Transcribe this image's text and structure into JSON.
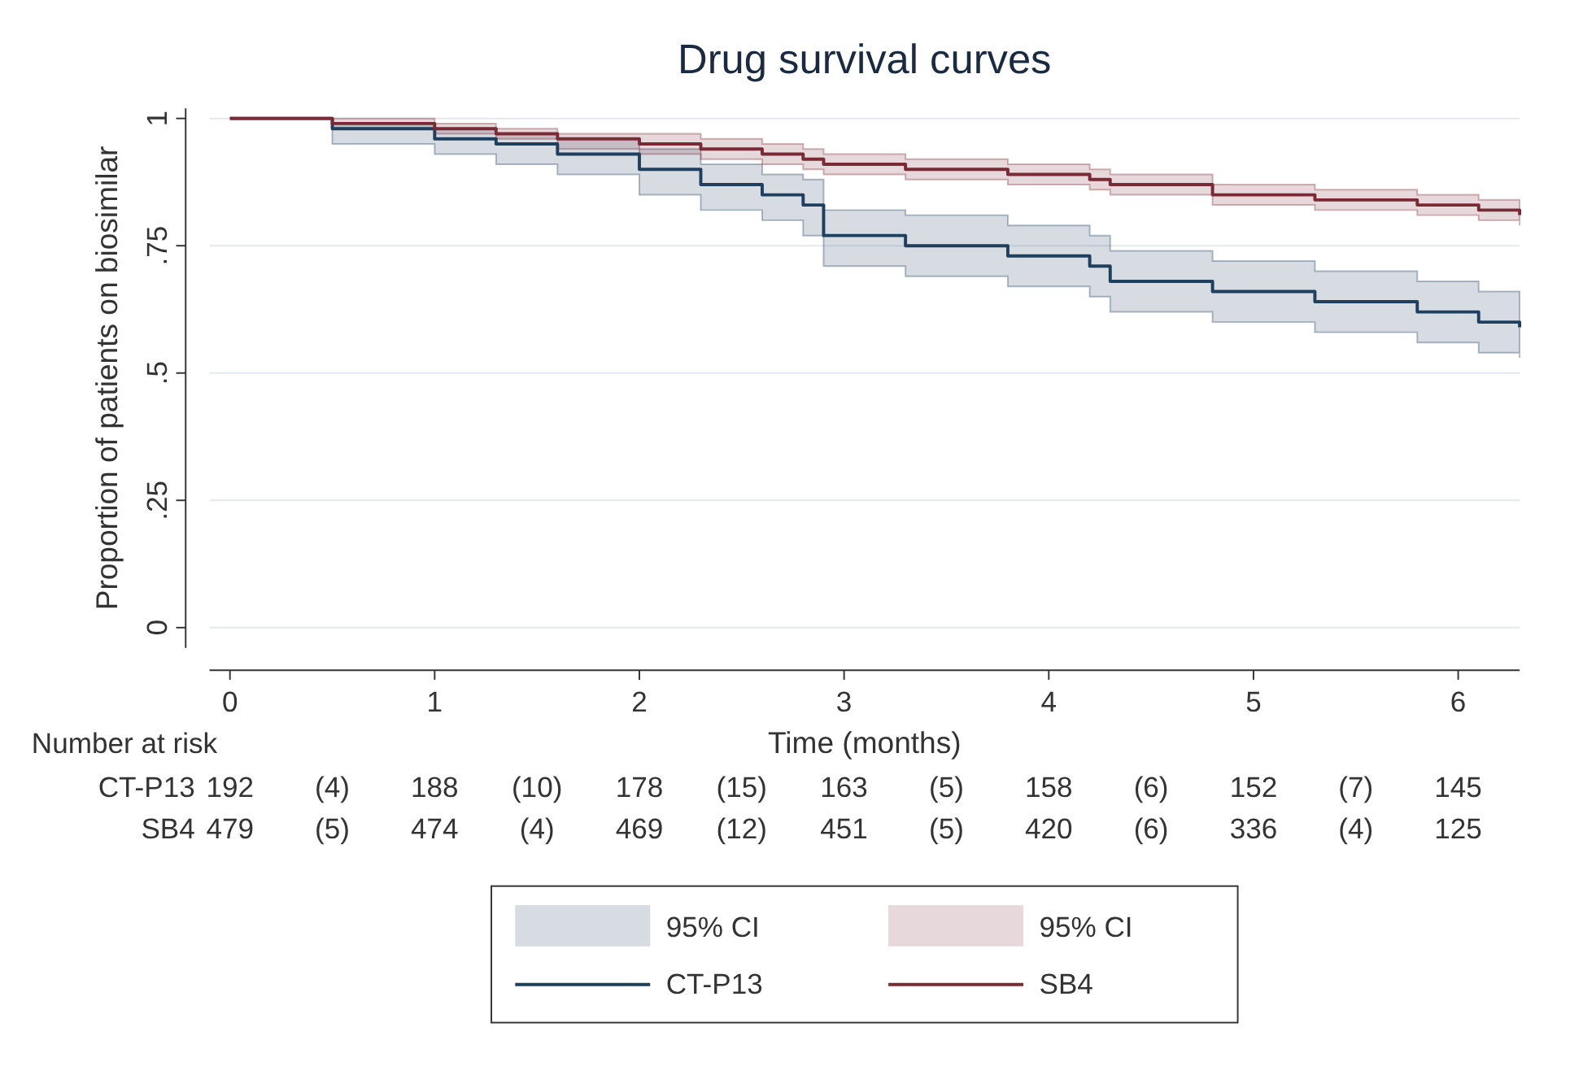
{
  "chart_data": {
    "type": "step",
    "title": "Drug survival curves",
    "xlabel": "Time (months)",
    "ylabel": "Proportion of patients on biosimilar",
    "x": [
      0,
      0.5,
      1,
      1.3,
      1.6,
      2,
      2.3,
      2.6,
      2.8,
      2.9,
      3.3,
      3.8,
      4.2,
      4.3,
      4.8,
      5.3,
      5.8,
      6.1,
      6.3
    ],
    "series": [
      {
        "name": "CT-P13",
        "color": "#1f3f5f",
        "values": [
          1,
          0.98,
          0.96,
          0.95,
          0.93,
          0.9,
          0.87,
          0.85,
          0.83,
          0.77,
          0.75,
          0.73,
          0.71,
          0.68,
          0.66,
          0.64,
          0.62,
          0.6,
          0.59
        ],
        "lower": [
          1,
          0.95,
          0.93,
          0.91,
          0.89,
          0.85,
          0.82,
          0.8,
          0.77,
          0.71,
          0.69,
          0.67,
          0.65,
          0.62,
          0.6,
          0.58,
          0.56,
          0.54,
          0.53
        ],
        "upper": [
          1,
          0.99,
          0.98,
          0.97,
          0.96,
          0.94,
          0.91,
          0.89,
          0.88,
          0.82,
          0.81,
          0.79,
          0.77,
          0.74,
          0.72,
          0.7,
          0.68,
          0.66,
          0.65
        ]
      },
      {
        "name": "SB4",
        "color": "#7a2a35",
        "values": [
          1,
          0.99,
          0.98,
          0.97,
          0.96,
          0.95,
          0.94,
          0.93,
          0.92,
          0.91,
          0.9,
          0.89,
          0.88,
          0.87,
          0.85,
          0.84,
          0.83,
          0.82,
          0.81
        ],
        "lower": [
          1,
          0.98,
          0.97,
          0.96,
          0.94,
          0.93,
          0.92,
          0.91,
          0.9,
          0.89,
          0.88,
          0.87,
          0.86,
          0.85,
          0.83,
          0.82,
          0.81,
          0.8,
          0.79
        ],
        "upper": [
          1,
          1,
          0.99,
          0.98,
          0.97,
          0.97,
          0.96,
          0.95,
          0.94,
          0.93,
          0.92,
          0.91,
          0.9,
          0.89,
          0.87,
          0.86,
          0.85,
          0.84,
          0.83
        ]
      }
    ],
    "xlim": [
      -0.1,
      6.3
    ],
    "xticks": [
      0,
      1,
      2,
      3,
      4,
      5,
      6
    ],
    "ylim": [
      -0.04,
      1.02
    ],
    "yticks": [
      {
        "value": 0,
        "label": "0"
      },
      {
        "value": 0.25,
        "label": ".25"
      },
      {
        "value": 0.5,
        "label": ".5"
      },
      {
        "value": 0.75,
        "label": ".75"
      },
      {
        "value": 1,
        "label": "1"
      }
    ],
    "grid": "y",
    "legend": "bottom",
    "annotations": [
      "Number at risk",
      "CT-P13 192 (4) 188 (10) 178 (15) 163 (5) 158 (6) 152 (7) 145",
      "SB4 479 (5) 474 (4) 469 (12) 451 (5) 420 (6) 336 (4) 125",
      "95% CI",
      "95% CI"
    ]
  }
}
